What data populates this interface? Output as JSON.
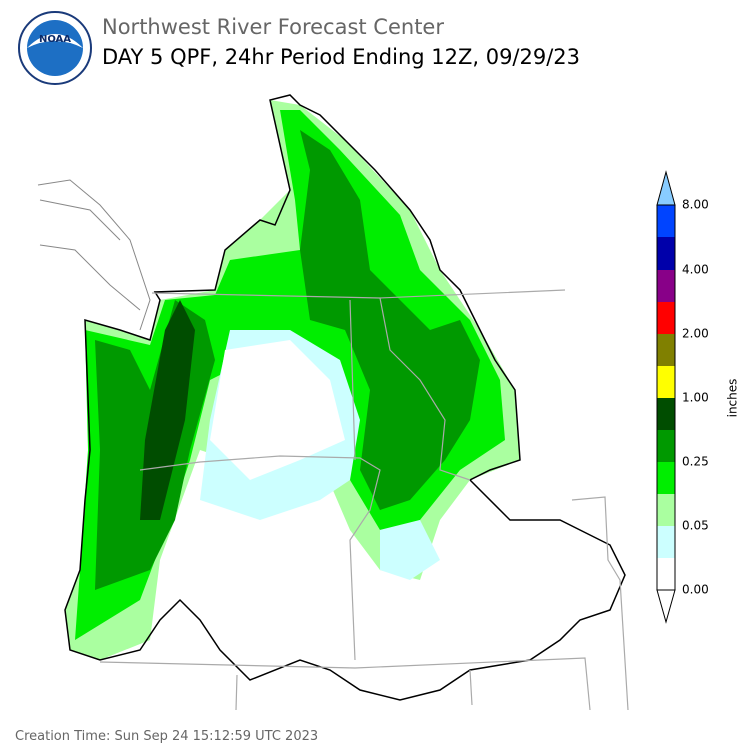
{
  "header": {
    "agency": "Northwest River Forecast Center",
    "title": "DAY 5 QPF, 24hr Period Ending 12Z, 09/29/23"
  },
  "logo": {
    "text": "NOAA"
  },
  "legend": {
    "unit": "inches",
    "labels": [
      "0.00",
      "0.05",
      "0.25",
      "1.00",
      "2.00",
      "4.00",
      "8.00"
    ]
  },
  "footer": {
    "creation_time": "Creation Time: Sun Sep 24 15:12:59 UTC 2023"
  }
}
